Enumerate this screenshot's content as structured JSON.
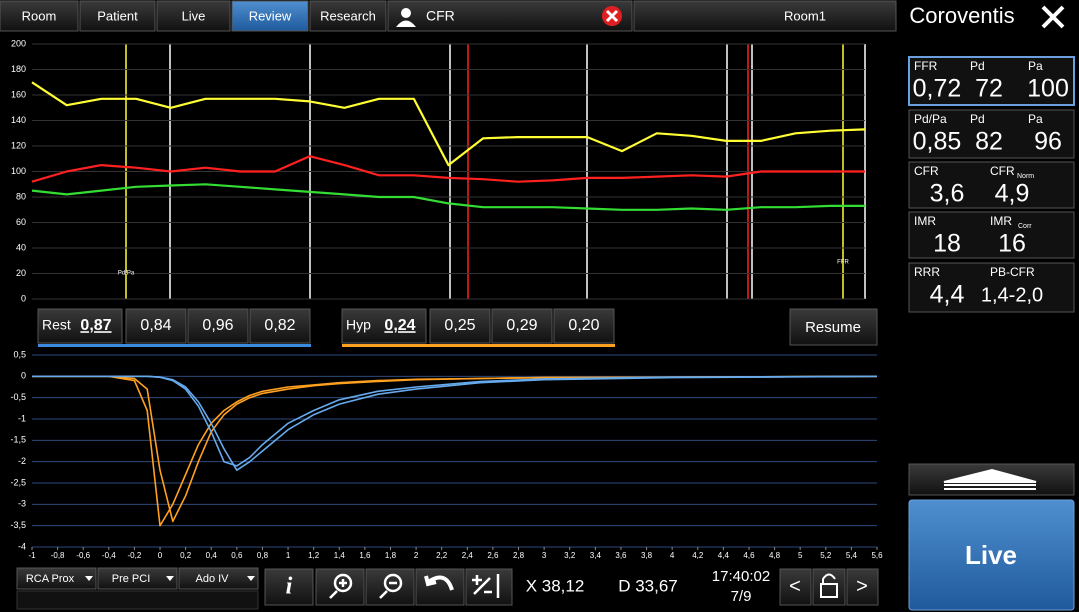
{
  "tabs": [
    "Room",
    "Patient",
    "Live",
    "Review",
    "Research"
  ],
  "active_tab": "Review",
  "mode": "CFR",
  "room": "Room1",
  "brand": "Coroventis",
  "panels": [
    {
      "labels": [
        "FFR",
        "Pd",
        "Pa"
      ],
      "values": [
        "0,72",
        "72",
        "100"
      ]
    },
    {
      "labels": [
        "Pd/Pa",
        "Pd",
        "Pa"
      ],
      "values": [
        "0,85",
        "82",
        "96"
      ]
    },
    {
      "labels": [
        "CFR",
        "CFR"
      ],
      "sub": "Norm",
      "values": [
        "3,6",
        "4,9"
      ]
    },
    {
      "labels": [
        "IMR",
        "IMR"
      ],
      "sub": "Corr",
      "values": [
        "18",
        "16"
      ]
    },
    {
      "labels": [
        "RRR",
        "PB-CFR"
      ],
      "values": [
        "4,4",
        "1,4-2,0"
      ]
    }
  ],
  "rest": {
    "label": "Rest",
    "values": [
      "0,87",
      "0,84",
      "0,96",
      "0,82"
    ]
  },
  "hyp": {
    "label": "Hyp",
    "values": [
      "0,24",
      "0,25",
      "0,29",
      "0,20"
    ]
  },
  "resume": "Resume",
  "dropdowns": [
    "RCA Prox",
    "Pre PCI",
    "Ado IV"
  ],
  "info_button": "i",
  "cursor_x": "X 38,12",
  "cursor_d": "D 33,67",
  "time": "17:40:02",
  "position": "7/9",
  "prev": "<",
  "next": ">",
  "live_button": "Live",
  "chart_data": [
    {
      "type": "line",
      "annotations": [
        "Pd/Pa",
        "FFR"
      ],
      "ylim": [
        0,
        200
      ],
      "yticks": [
        0,
        20,
        40,
        60,
        80,
        100,
        120,
        140,
        160,
        180,
        200
      ],
      "grid": true,
      "series": [
        {
          "color": "#ffff33",
          "values": [
            170,
            152,
            157,
            157,
            150,
            157,
            157,
            157,
            155,
            150,
            157,
            157,
            105,
            126,
            127,
            127,
            127,
            116,
            130,
            128,
            124,
            124,
            130,
            132,
            133
          ]
        },
        {
          "color": "#ff2020",
          "values": [
            92,
            100,
            105,
            103,
            100,
            103,
            100,
            100,
            112,
            105,
            97,
            97,
            95,
            94,
            92,
            93,
            95,
            95,
            96,
            97,
            96,
            100,
            100,
            100,
            100
          ]
        },
        {
          "color": "#33dd33",
          "values": [
            85,
            82,
            85,
            88,
            89,
            90,
            88,
            86,
            84,
            82,
            80,
            80,
            75,
            72,
            72,
            72,
            71,
            70,
            70,
            71,
            70,
            72,
            72,
            73,
            73
          ]
        }
      ]
    },
    {
      "type": "line",
      "x": [
        -1,
        -0.4,
        -0.2,
        -0.1,
        0,
        0.1,
        0.2,
        0.3,
        0.4,
        0.5,
        0.6,
        0.7,
        0.8,
        1,
        1.2,
        1.4,
        1.7,
        2,
        2.5,
        3,
        4,
        5.6
      ],
      "xlim": [
        -1,
        5.6
      ],
      "xticks": [
        -1,
        {
          "value": -0.8,
          "label": "-0,8"
        },
        {
          "value": -0.6,
          "label": "-0,6"
        },
        {
          "value": -0.4,
          "label": "-0,4"
        },
        {
          "value": -0.2,
          "label": "-0,2"
        },
        0,
        {
          "value": 0.2,
          "label": "0,2"
        },
        {
          "value": 0.4,
          "label": "0,4"
        },
        {
          "value": 0.6,
          "label": "0,6"
        },
        {
          "value": 0.8,
          "label": "0,8"
        },
        1,
        {
          "value": 1.2,
          "label": "1,2"
        },
        {
          "value": 1.4,
          "label": "1,4"
        },
        {
          "value": 1.6,
          "label": "1,6"
        },
        {
          "value": 1.8,
          "label": "1,8"
        },
        2,
        {
          "value": 2.2,
          "label": "2,2"
        },
        {
          "value": 2.4,
          "label": "2,4"
        },
        {
          "value": 2.6,
          "label": "2,6"
        },
        {
          "value": 2.8,
          "label": "2,8"
        },
        3,
        {
          "value": 3.2,
          "label": "3,2"
        },
        {
          "value": 3.4,
          "label": "3,4"
        },
        {
          "value": 3.6,
          "label": "3,6"
        },
        {
          "value": 3.8,
          "label": "3,8"
        },
        4,
        {
          "value": 4.2,
          "label": "4,2"
        },
        {
          "value": 4.4,
          "label": "4,4"
        },
        {
          "value": 4.6,
          "label": "4,6"
        },
        {
          "value": 4.8,
          "label": "4,8"
        },
        5,
        {
          "value": 5.2,
          "label": "5,2"
        },
        {
          "value": 5.4,
          "label": "5,4"
        },
        {
          "value": 5.6,
          "label": "5,6"
        }
      ],
      "ylim": [
        -4,
        0.5
      ],
      "yticks": [
        -4,
        {
          "value": -3.5,
          "label": "-3,5"
        },
        -3,
        {
          "value": -2.5,
          "label": "-2,5"
        },
        -2,
        {
          "value": -1.5,
          "label": "-1,5"
        },
        -1,
        {
          "value": -0.5,
          "label": "-0,5"
        },
        0,
        {
          "value": 0.5,
          "label": "0,5"
        }
      ],
      "grid": true,
      "series": [
        {
          "color": "#ffa020",
          "values": [
            0,
            0,
            -0.1,
            -0.8,
            -3.5,
            -3.0,
            -2.3,
            -1.6,
            -1.1,
            -0.8,
            -0.6,
            -0.45,
            -0.35,
            -0.25,
            -0.2,
            -0.15,
            -0.1,
            -0.07,
            -0.05,
            -0.03,
            -0.02,
            0
          ]
        },
        {
          "color": "#ffa020",
          "values": [
            0,
            0,
            -0.05,
            -0.3,
            -2.2,
            -3.4,
            -2.8,
            -2.0,
            -1.3,
            -0.9,
            -0.65,
            -0.5,
            -0.4,
            -0.3,
            -0.22,
            -0.17,
            -0.12,
            -0.08,
            -0.05,
            -0.03,
            -0.02,
            0
          ]
        },
        {
          "color": "#66aaee",
          "values": [
            0,
            0,
            0,
            0,
            -0.02,
            -0.1,
            -0.3,
            -0.7,
            -1.3,
            -2.0,
            -2.1,
            -1.9,
            -1.6,
            -1.1,
            -0.8,
            -0.55,
            -0.35,
            -0.25,
            -0.12,
            -0.06,
            -0.02,
            0
          ]
        },
        {
          "color": "#66aaee",
          "values": [
            0,
            0,
            0,
            0,
            -0.02,
            -0.08,
            -0.25,
            -0.6,
            -1.1,
            -1.7,
            -2.2,
            -2.0,
            -1.75,
            -1.25,
            -0.9,
            -0.65,
            -0.42,
            -0.3,
            -0.15,
            -0.08,
            -0.03,
            0
          ]
        }
      ]
    }
  ]
}
